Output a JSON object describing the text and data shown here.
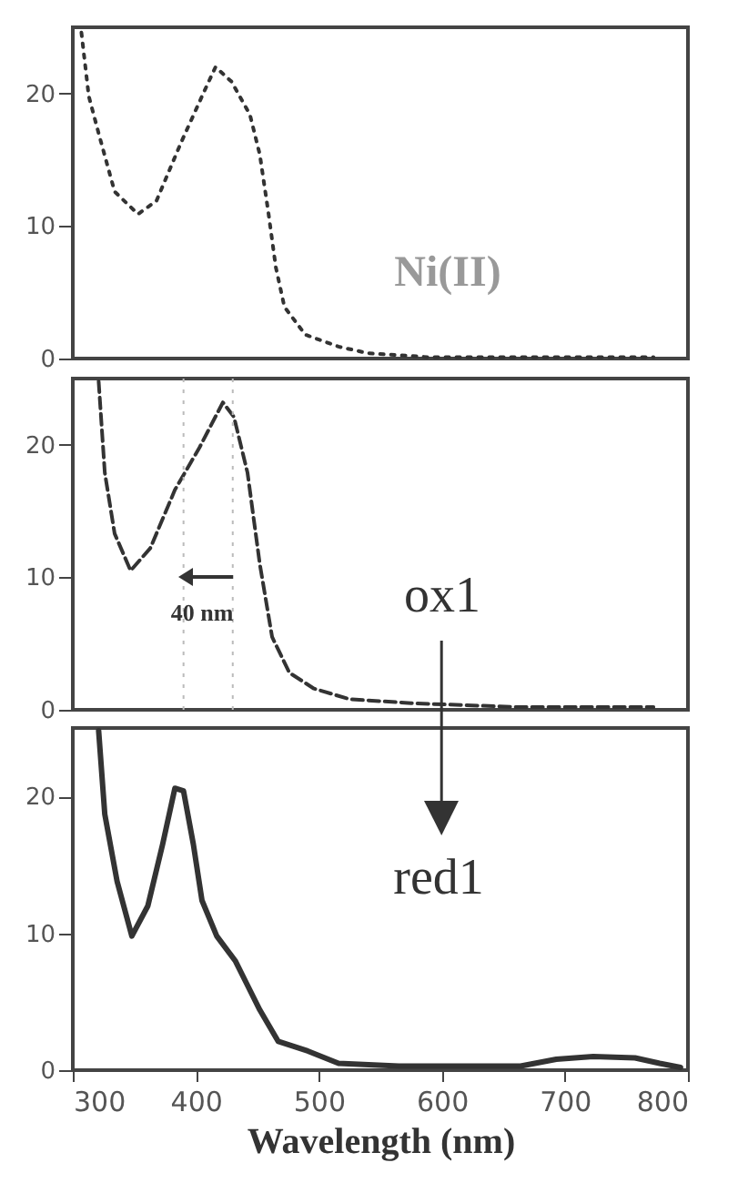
{
  "chart_data": [
    {
      "type": "line",
      "line_style": "dotted",
      "marker": "none",
      "grid": false,
      "tick_labels": "y",
      "xlim": [
        300,
        800
      ],
      "xticks": [
        300,
        400,
        500,
        600,
        700,
        800
      ],
      "ylim": [
        0,
        25
      ],
      "yticks": [
        0,
        10,
        20
      ],
      "x": [
        307,
        313,
        321,
        334,
        353,
        368,
        388,
        407,
        416,
        429,
        444,
        452,
        459,
        465,
        472,
        489,
        516,
        540,
        590,
        698,
        772
      ],
      "series": [
        {
          "color": "#333333",
          "values": [
            24.6,
            19.8,
            17,
            12.6,
            10.9,
            11.9,
            16.3,
            20.2,
            22,
            20.9,
            18.4,
            15.4,
            11,
            6.9,
            3.9,
            1.8,
            0.9,
            0.4,
            0.1,
            0.1,
            0.1
          ]
        }
      ],
      "annotations": [
        "Ni(II)"
      ]
    },
    {
      "type": "line",
      "line_style": "dashed",
      "marker": "none",
      "grid": false,
      "tick_labels": "y",
      "xlim": [
        300,
        800
      ],
      "xticks": [
        300,
        400,
        500,
        600,
        700,
        800
      ],
      "ylim": [
        0,
        25
      ],
      "yticks": [
        0,
        10,
        20
      ],
      "x": [
        321,
        326,
        334,
        347,
        363,
        383,
        403,
        422,
        431,
        442,
        452,
        462,
        476,
        496,
        525,
        575,
        663,
        772
      ],
      "series": [
        {
          "color": "#333333",
          "values": [
            24.8,
            17.9,
            13.3,
            10.5,
            12.2,
            16.6,
            19.8,
            23.2,
            22.1,
            17.9,
            11,
            5.5,
            2.8,
            1.6,
            0.8,
            0.5,
            0.2,
            0.2
          ]
        }
      ],
      "ref_lines": [
        {
          "axis": "x",
          "value": 390,
          "color": "#bbbbbb",
          "line_style": "dotted"
        },
        {
          "axis": "x",
          "value": 430,
          "color": "#bbbbbb",
          "line_style": "dotted"
        }
      ],
      "annotations": [
        "40 nm",
        "ox1"
      ]
    },
    {
      "type": "line",
      "line_style": "solid",
      "marker": "none",
      "grid": false,
      "xlabel": "Wavelength (nm)",
      "xlim": [
        300,
        800
      ],
      "xticks": [
        300,
        400,
        500,
        600,
        700,
        800
      ],
      "ylim": [
        0,
        25
      ],
      "yticks": [
        0,
        10,
        20
      ],
      "x": [
        321,
        326,
        336,
        348,
        361,
        373,
        383,
        390,
        398,
        405,
        417,
        432,
        442,
        452,
        467,
        491,
        516,
        565,
        664,
        693,
        723,
        757,
        777,
        794
      ],
      "series": [
        {
          "color": "#333333",
          "values": [
            24.8,
            18.7,
            13.8,
            9.8,
            12,
            16.5,
            20.6,
            20.4,
            16.5,
            12.4,
            9.8,
            8,
            6.2,
            4.4,
            2.1,
            1.4,
            0.5,
            0.3,
            0.3,
            0.8,
            1,
            0.9,
            0.5,
            0.2
          ]
        }
      ],
      "annotations": [
        "red1"
      ]
    }
  ]
}
